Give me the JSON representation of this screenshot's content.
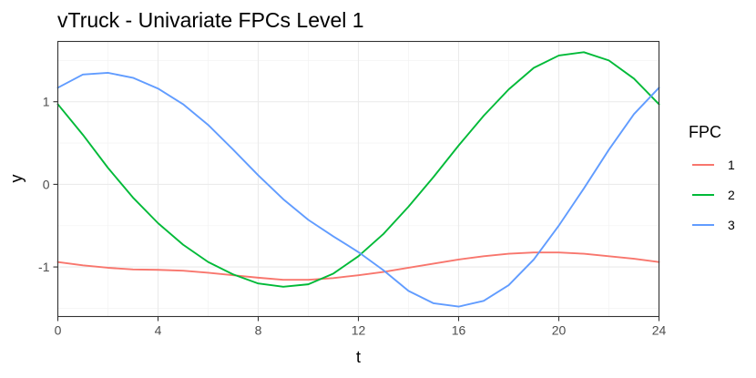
{
  "chart_data": {
    "type": "line",
    "title": "vTruck - Univariate FPCs Level 1",
    "xlabel": "t",
    "ylabel": "y",
    "xlim": [
      0,
      24
    ],
    "ylim": [
      -1.6,
      1.73
    ],
    "x_ticks": [
      0,
      4,
      8,
      12,
      16,
      20,
      24
    ],
    "y_ticks": [
      -1,
      0,
      1
    ],
    "grid": true,
    "legend": {
      "title": "FPC",
      "position": "right"
    },
    "x": [
      0,
      1,
      2,
      3,
      4,
      5,
      6,
      7,
      8,
      9,
      10,
      11,
      12,
      13,
      14,
      15,
      16,
      17,
      18,
      19,
      20,
      21,
      22,
      23,
      24
    ],
    "series": [
      {
        "name": "1",
        "color": "#F8766D",
        "values": [
          -0.94,
          -0.98,
          -1.01,
          -1.03,
          -1.035,
          -1.045,
          -1.07,
          -1.1,
          -1.13,
          -1.155,
          -1.155,
          -1.135,
          -1.1,
          -1.06,
          -1.01,
          -0.96,
          -0.91,
          -0.87,
          -0.84,
          -0.825,
          -0.825,
          -0.84,
          -0.87,
          -0.9,
          -0.94
        ]
      },
      {
        "name": "2",
        "color": "#00BA38",
        "values": [
          0.97,
          0.6,
          0.2,
          -0.16,
          -0.47,
          -0.73,
          -0.94,
          -1.09,
          -1.2,
          -1.24,
          -1.21,
          -1.08,
          -0.87,
          -0.6,
          -0.27,
          0.09,
          0.47,
          0.83,
          1.15,
          1.41,
          1.56,
          1.6,
          1.5,
          1.28,
          0.97
        ]
      },
      {
        "name": "3",
        "color": "#619CFF",
        "values": [
          1.17,
          1.33,
          1.35,
          1.29,
          1.16,
          0.97,
          0.72,
          0.42,
          0.11,
          -0.18,
          -0.43,
          -0.63,
          -0.82,
          -1.04,
          -1.29,
          -1.44,
          -1.48,
          -1.41,
          -1.22,
          -0.91,
          -0.5,
          -0.05,
          0.42,
          0.85,
          1.17
        ]
      }
    ]
  }
}
